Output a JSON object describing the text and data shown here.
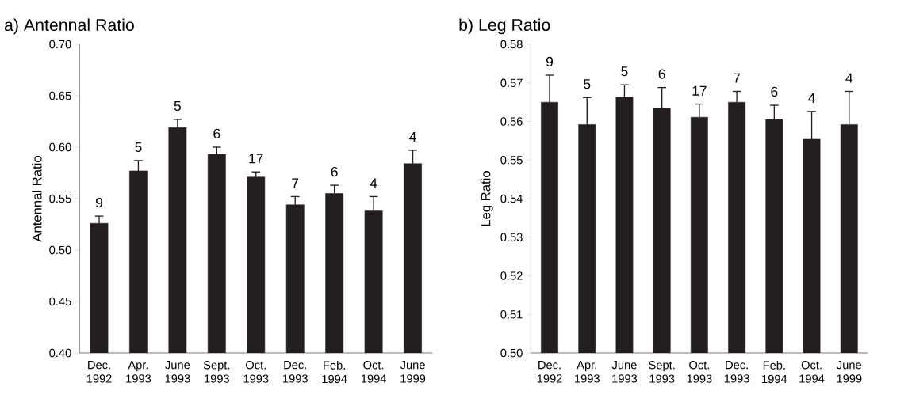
{
  "chart_data": [
    {
      "type": "bar",
      "title": "a) Antennal Ratio",
      "ylabel": "Antennal Ratio",
      "categories": [
        "Dec. 1992",
        "Apr. 1993",
        "June 1993",
        "Sept. 1993",
        "Oct. 1993",
        "Dec. 1993",
        "Feb. 1994",
        "Oct. 1994",
        "June 1999"
      ],
      "values": [
        0.526,
        0.577,
        0.619,
        0.593,
        0.571,
        0.544,
        0.555,
        0.538,
        0.584
      ],
      "errors": [
        0.007,
        0.01,
        0.008,
        0.007,
        0.005,
        0.008,
        0.008,
        0.014,
        0.013
      ],
      "color": "#231f20",
      "ylim": [
        0.4,
        0.7
      ],
      "yticks": [
        {
          "value": 0.4,
          "label": "0.40"
        },
        0.45,
        {
          "value": 0.5,
          "label": "0.50"
        },
        0.55,
        {
          "value": 0.6,
          "label": "0.60"
        },
        0.65,
        {
          "value": 0.7,
          "label": "0.70"
        }
      ],
      "annotations": [
        {
          "text": "9",
          "x": "Dec. 1992",
          "y": 0.533
        },
        {
          "text": "5",
          "x": "Apr. 1993",
          "y": 0.587
        },
        {
          "text": "5",
          "x": "June 1993",
          "y": 0.627
        },
        {
          "text": "6",
          "x": "Sept. 1993",
          "y": 0.6
        },
        {
          "text": "17",
          "x": "Oct. 1993",
          "y": 0.576
        },
        {
          "text": "7",
          "x": "Dec. 1993",
          "y": 0.552
        },
        {
          "text": "6",
          "x": "Feb. 1994",
          "y": 0.563
        },
        {
          "text": "4",
          "x": "Oct. 1994",
          "y": 0.552
        },
        {
          "text": "4",
          "x": "June 1999",
          "y": 0.597
        }
      ]
    },
    {
      "type": "bar",
      "title": "b) Leg Ratio",
      "ylabel": "Leg Ratio",
      "categories": [
        "Dec. 1992",
        "Apr. 1993",
        "June 1993",
        "Sept. 1993",
        "Oct. 1993",
        "Dec. 1993",
        "Feb. 1994",
        "Oct. 1994",
        "June 1999"
      ],
      "values": [
        0.565,
        0.5592,
        0.5663,
        0.5635,
        0.5611,
        0.565,
        0.5605,
        0.5554,
        0.5592
      ],
      "errors": [
        0.007,
        0.007,
        0.0032,
        0.0053,
        0.0034,
        0.0028,
        0.0037,
        0.0072,
        0.0086
      ],
      "color": "#231f20",
      "ylim": [
        0.5,
        0.58
      ],
      "yticks": [
        {
          "value": 0.5,
          "label": "0.50"
        },
        0.51,
        0.52,
        0.53,
        0.54,
        0.55,
        0.56,
        0.57,
        0.58
      ],
      "annotations": [
        {
          "text": "9",
          "x": "Dec. 1992",
          "y": 0.572
        },
        {
          "text": "5",
          "x": "Apr. 1993",
          "y": 0.5662
        },
        {
          "text": "5",
          "x": "June 1993",
          "y": 0.5695
        },
        {
          "text": "6",
          "x": "Sept. 1993",
          "y": 0.5688
        },
        {
          "text": "17",
          "x": "Oct. 1993",
          "y": 0.5645
        },
        {
          "text": "7",
          "x": "Dec. 1993",
          "y": 0.5678
        },
        {
          "text": "6",
          "x": "Feb. 1994",
          "y": 0.5642
        },
        {
          "text": "4",
          "x": "Oct. 1994",
          "y": 0.5626
        },
        {
          "text": "4",
          "x": "June 1999",
          "y": 0.5678
        }
      ]
    }
  ]
}
